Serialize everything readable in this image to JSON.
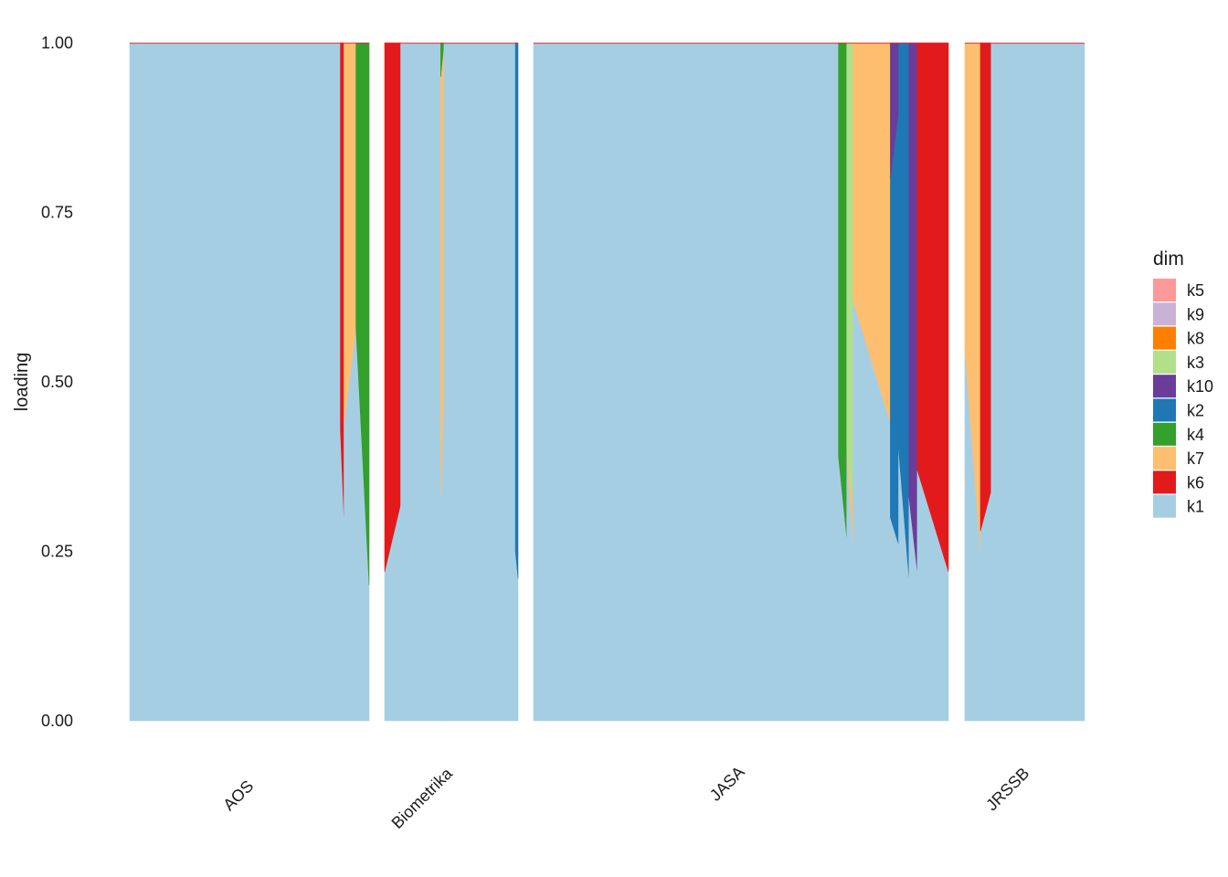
{
  "chart_data": {
    "type": "area",
    "subtype": "structure-plot (stacked proportions per document, faceted by journal)",
    "ylabel": "loading",
    "ylim": [
      0,
      1
    ],
    "yticks": [
      "0.00",
      "0.25",
      "0.50",
      "0.75",
      "1.00"
    ],
    "facets": [
      "AOS",
      "Biometrika",
      "JASA",
      "JRSSB"
    ],
    "legend": {
      "title": "dim",
      "position": "right",
      "entries": [
        {
          "name": "k5",
          "color": "#FB9A99"
        },
        {
          "name": "k9",
          "color": "#CAB2D6"
        },
        {
          "name": "k8",
          "color": "#FF7F00"
        },
        {
          "name": "k3",
          "color": "#B2DF8A"
        },
        {
          "name": "k10",
          "color": "#6A3D9A"
        },
        {
          "name": "k2",
          "color": "#1F78B4"
        },
        {
          "name": "k4",
          "color": "#33A02C"
        },
        {
          "name": "k7",
          "color": "#FDBF6F"
        },
        {
          "name": "k6",
          "color": "#E31A1C"
        },
        {
          "name": "k1",
          "color": "#A6CEE3"
        }
      ]
    },
    "stack_order_bottom_to_top": [
      "k1",
      "k6",
      "k7",
      "k4",
      "k2",
      "k10",
      "k3",
      "k8",
      "k9",
      "k5"
    ],
    "panels": [
      {
        "facet": "AOS",
        "segments": [
          {
            "frac": [
              0.0,
              0.88
            ],
            "k1": [
              1.0,
              1.0
            ]
          },
          {
            "frac": [
              0.88,
              0.895
            ],
            "k1": [
              0.43,
              0.3
            ],
            "k6": [
              0.57,
              0.7
            ]
          },
          {
            "frac": [
              0.895,
              0.945
            ],
            "k1": [
              0.44,
              0.58
            ],
            "k7": [
              0.56,
              0.42
            ]
          },
          {
            "frac": [
              0.945,
              1.0
            ],
            "k1": [
              0.58,
              0.2
            ],
            "k4": [
              0.42,
              0.8
            ]
          }
        ]
      },
      {
        "facet": "Biometrika",
        "segments": [
          {
            "frac": [
              0.0,
              0.12
            ],
            "k1": [
              0.22,
              0.32
            ],
            "k6": [
              0.78,
              0.68
            ]
          },
          {
            "frac": [
              0.12,
              0.42
            ],
            "k1": [
              1.0,
              1.0
            ]
          },
          {
            "frac": [
              0.42,
              0.445
            ],
            "k1": [
              0.33,
              0.5
            ],
            "k4": [
              0.05,
              0.0
            ],
            "k7": [
              0.62,
              0.5
            ]
          },
          {
            "frac": [
              0.445,
              0.98
            ],
            "k1": [
              1.0,
              1.0
            ]
          },
          {
            "frac": [
              0.98,
              1.0
            ],
            "k1": [
              0.25,
              0.21
            ],
            "k2": [
              0.75,
              0.79
            ]
          }
        ]
      },
      {
        "facet": "JASA",
        "segments": [
          {
            "frac": [
              0.0,
              0.735
            ],
            "k1": [
              1.0,
              1.0
            ]
          },
          {
            "frac": [
              0.735,
              0.755
            ],
            "k1": [
              0.39,
              0.27
            ],
            "k4": [
              0.61,
              0.73
            ]
          },
          {
            "frac": [
              0.755,
              0.77
            ],
            "k1": [
              0.4,
              0.26
            ],
            "k7": [
              0.0,
              0.06
            ],
            "k3": [
              0.6,
              0.68
            ]
          },
          {
            "frac": [
              0.77,
              0.86
            ],
            "k1": [
              0.62,
              0.44
            ],
            "k7": [
              0.38,
              0.56
            ]
          },
          {
            "frac": [
              0.86,
              0.88
            ],
            "k1": [
              0.3,
              0.26
            ],
            "k10": [
              0.2,
              0.1
            ],
            "k2": [
              0.5,
              0.64
            ]
          },
          {
            "frac": [
              0.88,
              0.905
            ],
            "k1": [
              0.4,
              0.21
            ],
            "k2": [
              0.6,
              0.79
            ]
          },
          {
            "frac": [
              0.905,
              0.925
            ],
            "k1": [
              0.33,
              0.22
            ],
            "k10": [
              0.67,
              0.78
            ]
          },
          {
            "frac": [
              0.925,
              1.0
            ],
            "k1": [
              0.37,
              0.22
            ],
            "k6": [
              0.63,
              0.78
            ]
          }
        ]
      },
      {
        "facet": "JRSSB",
        "segments": [
          {
            "frac": [
              0.0,
              0.13
            ],
            "k1": [
              0.55,
              0.25
            ],
            "k7": [
              0.45,
              0.75
            ]
          },
          {
            "frac": [
              0.13,
              0.22
            ],
            "k1": [
              0.28,
              0.34
            ],
            "k6": [
              0.72,
              0.66
            ]
          },
          {
            "frac": [
              0.22,
              1.0
            ],
            "k1": [
              1.0,
              1.0
            ]
          }
        ]
      }
    ]
  }
}
